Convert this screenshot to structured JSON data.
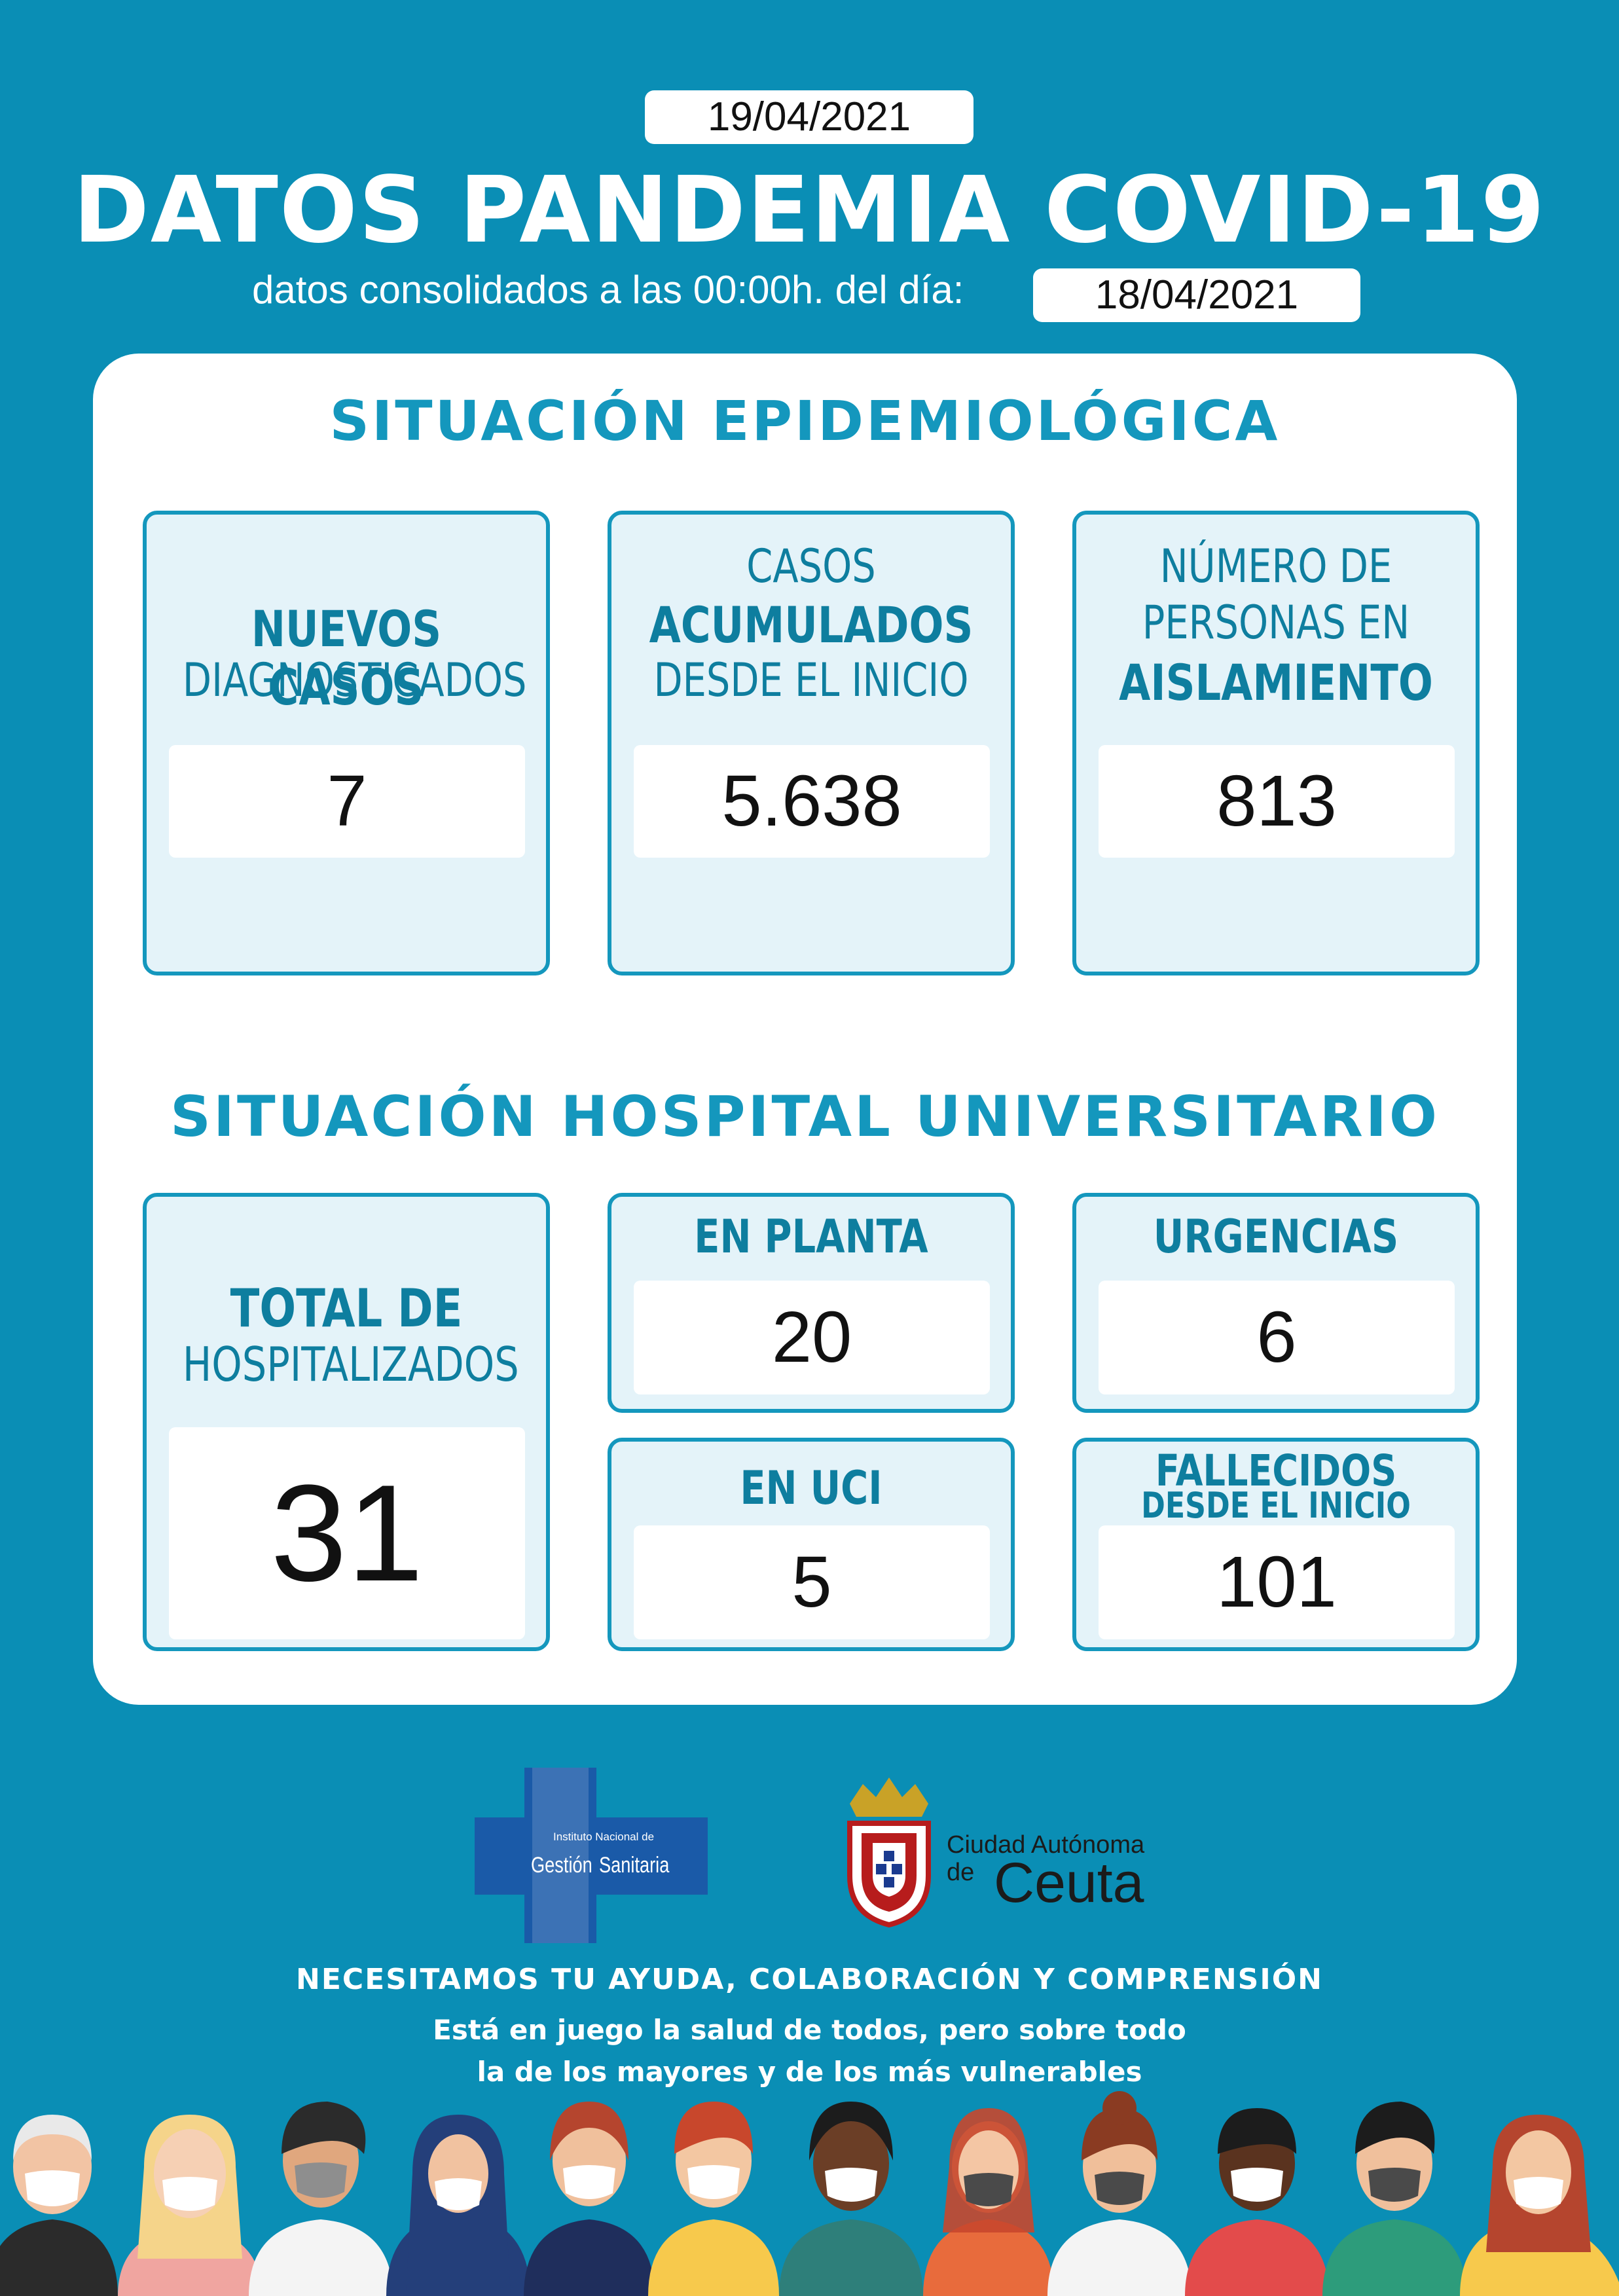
{
  "header": {
    "date": "19/04/2021",
    "title": "DATOS PANDEMIA COVID-19",
    "subtitle": "datos consolidados a las 00:00h. del día:",
    "data_date": "18/04/2021"
  },
  "epidemiologica": {
    "title": "SITUACIÓN EPIDEMIOLÓGICA",
    "nuevos": {
      "line1": "NUEVOS CASOS",
      "line2": "DIAGNOSTICADOS",
      "value": "7"
    },
    "acumulados": {
      "line1": "CASOS",
      "line2": "ACUMULADOS",
      "line3": "DESDE EL INICIO",
      "value": "5.638"
    },
    "aislamiento": {
      "line1": "NÚMERO DE",
      "line2": "PERSONAS EN",
      "line3": "AISLAMIENTO",
      "value": "813"
    }
  },
  "hospital": {
    "title": "SITUACIÓN HOSPITAL UNIVERSITARIO",
    "total": {
      "line1": "TOTAL DE",
      "line2": "HOSPITALIZADOS",
      "value": "31"
    },
    "planta": {
      "label": "EN PLANTA",
      "value": "20"
    },
    "urgencias": {
      "label": "URGENCIAS",
      "value": "6"
    },
    "uci": {
      "label": "EN UCI",
      "value": "5"
    },
    "fallecidos": {
      "line1": "FALLECIDOS",
      "line2": "DESDE EL INICIO",
      "value": "101"
    }
  },
  "logos": {
    "ingesa_line1": "Instituto Nacional de",
    "ingesa_left": "Gestión",
    "ingesa_right": "Sanitaria",
    "ceuta_line1": "Ciudad Autónoma",
    "ceuta_de": "de",
    "ceuta_name": "Ceuta"
  },
  "footer": {
    "line1": "NECESITAMOS TU AYUDA, COLABORACIÓN  Y COMPRENSIÓN",
    "line2": "Está en juego la salud de todos, pero sobre todo",
    "line3": "la de los mayores y de los más vulnerables"
  },
  "colors": {
    "background": "#0A8EB5",
    "accent": "#1497BD",
    "box_fill": "#E4F3F9"
  }
}
